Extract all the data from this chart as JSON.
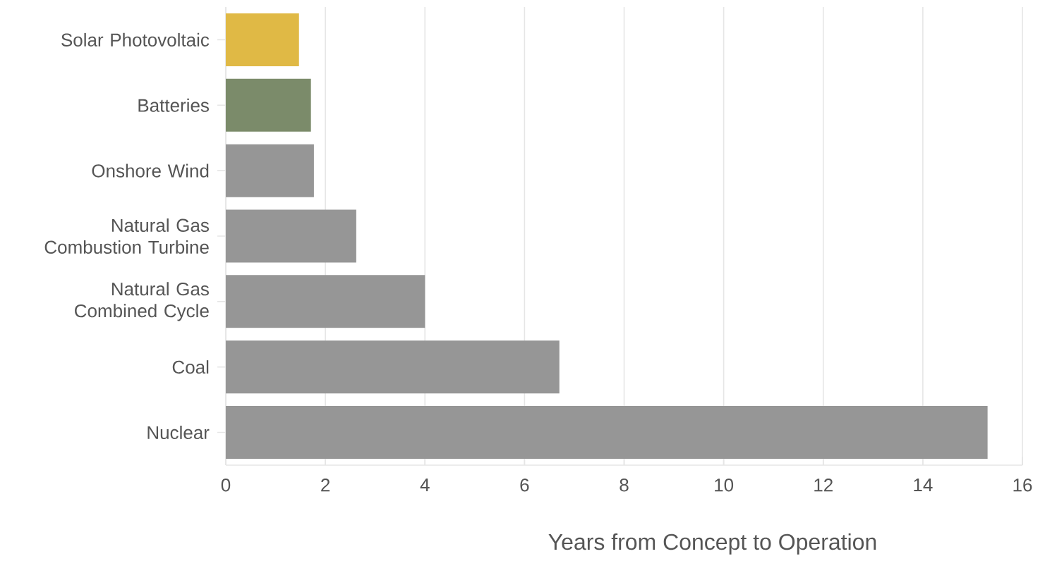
{
  "chart_data": {
    "type": "bar",
    "orientation": "horizontal",
    "xlabel": "Years from Concept to Operation",
    "categories": [
      "Solar Photovoltaic",
      "Batteries",
      "Onshore Wind",
      "Natural Gas Combustion Turbine",
      "Natural Gas Combined Cycle",
      "Coal",
      "Nuclear"
    ],
    "values": [
      1.47,
      1.71,
      1.77,
      2.62,
      4.0,
      6.7,
      15.3
    ],
    "colors": [
      "#e0b945",
      "#7b8b6a",
      "#969696",
      "#969696",
      "#969696",
      "#969696",
      "#969696"
    ],
    "xlim": [
      0,
      16
    ],
    "xticks": [
      0,
      2,
      4,
      6,
      8,
      10,
      12,
      14,
      16
    ],
    "grid": "x"
  }
}
